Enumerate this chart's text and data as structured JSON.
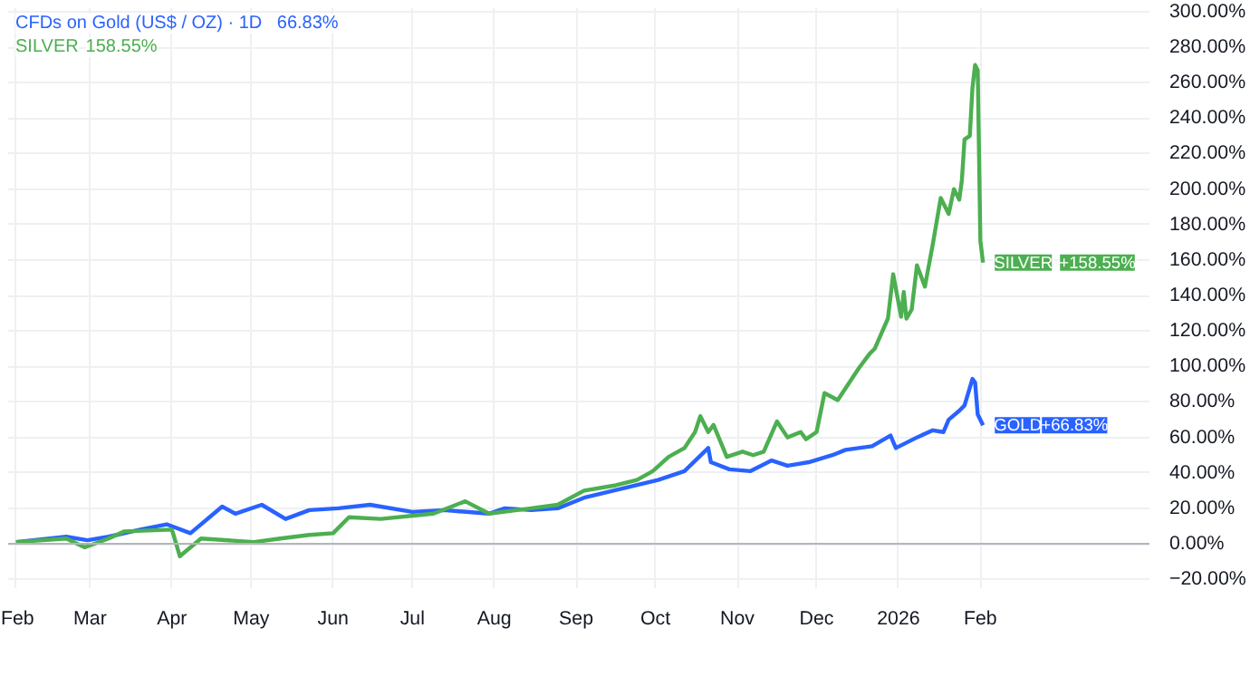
{
  "chart_data": {
    "type": "line",
    "x": [
      "2025-02-01",
      "2025-02-20",
      "2025-02-28",
      "2025-03-08",
      "2025-03-20",
      "2025-03-30",
      "2025-04-08",
      "2025-04-20",
      "2025-04-25",
      "2025-05-05",
      "2025-05-14",
      "2025-05-23",
      "2025-06-03",
      "2025-06-15",
      "2025-07-01",
      "2025-07-13",
      "2025-07-30",
      "2025-08-05",
      "2025-08-15",
      "2025-08-25",
      "2025-09-04",
      "2025-09-18",
      "2025-10-02",
      "2025-10-12",
      "2025-10-21",
      "2025-10-22",
      "2025-10-29",
      "2025-11-06",
      "2025-11-14",
      "2025-11-20",
      "2025-11-28",
      "2025-12-07",
      "2025-12-12",
      "2025-12-22",
      "2025-12-29",
      "2025-12-31",
      "2026-01-08",
      "2026-01-14",
      "2026-01-18",
      "2026-01-20",
      "2026-01-24",
      "2026-01-26",
      "2026-01-29",
      "2026-01-30",
      "2026-01-31",
      "2026-02-02"
    ],
    "series": [
      {
        "name": "CFDs on Gold (US$ / OZ) · 1D",
        "color": "#2962ff",
        "values": [
          1,
          4,
          2,
          4,
          8,
          11,
          6,
          21,
          17,
          22,
          14,
          19,
          20,
          22,
          18,
          19,
          17,
          20,
          19,
          20,
          26,
          31,
          36,
          41,
          54,
          46,
          42,
          41,
          47,
          44,
          46,
          50,
          53,
          55,
          61,
          54,
          60,
          64,
          63,
          70,
          75,
          78,
          93,
          91,
          73,
          66.83
        ]
      },
      {
        "name": "SILVER",
        "color": "#4caf50",
        "x": [
          "2025-02-01",
          "2025-02-20",
          "2025-02-27",
          "2025-03-08",
          "2025-03-14",
          "2025-04-01",
          "2025-04-04",
          "2025-04-12",
          "2025-05-02",
          "2025-05-12",
          "2025-05-23",
          "2025-06-01",
          "2025-06-07",
          "2025-06-19",
          "2025-07-09",
          "2025-07-21",
          "2025-07-30",
          "2025-08-15",
          "2025-08-25",
          "2025-09-04",
          "2025-09-16",
          "2025-09-24",
          "2025-09-30",
          "2025-10-06",
          "2025-10-12",
          "2025-10-16",
          "2025-10-18",
          "2025-10-21",
          "2025-10-23",
          "2025-10-28",
          "2025-11-03",
          "2025-11-07",
          "2025-11-11",
          "2025-11-16",
          "2025-11-20",
          "2025-11-25",
          "2025-11-27",
          "2025-12-01",
          "2025-12-04",
          "2025-12-09",
          "2025-12-17",
          "2025-12-21",
          "2025-12-23",
          "2025-12-28",
          "2025-12-30",
          "2026-01-02",
          "2026-01-03",
          "2026-01-04",
          "2026-01-06",
          "2026-01-08",
          "2026-01-11",
          "2026-01-12",
          "2026-01-14",
          "2026-01-17",
          "2026-01-20",
          "2026-01-22",
          "2026-01-24",
          "2026-01-25",
          "2026-01-26",
          "2026-01-28",
          "2026-01-29",
          "2026-01-30",
          "2026-01-31",
          "2026-02-01",
          "2026-02-02"
        ],
        "values": [
          1,
          3,
          -2,
          3,
          7,
          8,
          -7,
          3,
          1,
          3,
          5,
          6,
          15,
          14,
          17,
          24,
          17,
          20,
          22,
          30,
          33,
          36,
          41,
          49,
          54,
          63,
          72,
          63,
          67,
          49,
          52,
          50,
          52,
          69,
          60,
          63,
          59,
          63,
          85,
          81,
          99,
          107,
          110,
          127,
          152,
          128,
          142,
          127,
          132,
          157,
          145,
          153,
          169,
          195,
          186,
          200,
          194,
          205,
          228,
          230,
          257,
          270,
          267,
          171,
          158.55
        ]
      }
    ],
    "xlim": [
      "2025-01-29",
      "2026-04-06"
    ],
    "xticks": [
      {
        "value": "2025-02-01",
        "label": "Feb"
      },
      {
        "value": "2025-03-01",
        "label": "Mar"
      },
      {
        "value": "2025-04-01",
        "label": "Apr"
      },
      {
        "value": "2025-05-01",
        "label": "May"
      },
      {
        "value": "2025-06-01",
        "label": "Jun"
      },
      {
        "value": "2025-07-01",
        "label": "Jul"
      },
      {
        "value": "2025-08-01",
        "label": "Aug"
      },
      {
        "value": "2025-09-01",
        "label": "Sep"
      },
      {
        "value": "2025-10-01",
        "label": "Oct"
      },
      {
        "value": "2025-11-01",
        "label": "Nov"
      },
      {
        "value": "2025-12-01",
        "label": "Dec"
      },
      {
        "value": "2026-01-01",
        "label": "2026"
      },
      {
        "value": "2026-02-01",
        "label": "Feb"
      }
    ],
    "ylim": [
      -25,
      302
    ],
    "yticks": [
      {
        "value": -20,
        "label": "−20.00%"
      },
      {
        "value": 0,
        "label": "0.00%"
      },
      {
        "value": 20,
        "label": "20.00%"
      },
      {
        "value": 40,
        "label": "40.00%"
      },
      {
        "value": 60,
        "label": "60.00%"
      },
      {
        "value": 80,
        "label": "80.00%"
      },
      {
        "value": 100,
        "label": "100.00%"
      },
      {
        "value": 120,
        "label": "120.00%"
      },
      {
        "value": 140,
        "label": "140.00%"
      },
      {
        "value": 160,
        "label": "160.00%"
      },
      {
        "value": 180,
        "label": "180.00%"
      },
      {
        "value": 200,
        "label": "200.00%"
      },
      {
        "value": 220,
        "label": "220.00%"
      },
      {
        "value": 240,
        "label": "240.00%"
      },
      {
        "value": 260,
        "label": "260.00%"
      },
      {
        "value": 280,
        "label": "280.00%"
      },
      {
        "value": 300,
        "label": "300.00%"
      }
    ],
    "ref_lines": [
      {
        "axis": "y",
        "value": 0,
        "color": "#b2b5be"
      }
    ],
    "annotations": [
      "66.83%",
      "158.55%",
      {
        "text": "SILVER",
        "x": "2026-02-02",
        "y": 158.55
      },
      {
        "text": "GOLD",
        "x": "2026-02-02",
        "y": 66.83
      },
      "+158.55%",
      "+66.83%"
    ],
    "grid": true,
    "legend": "top left",
    "line_style": "solid",
    "marker": "none"
  }
}
